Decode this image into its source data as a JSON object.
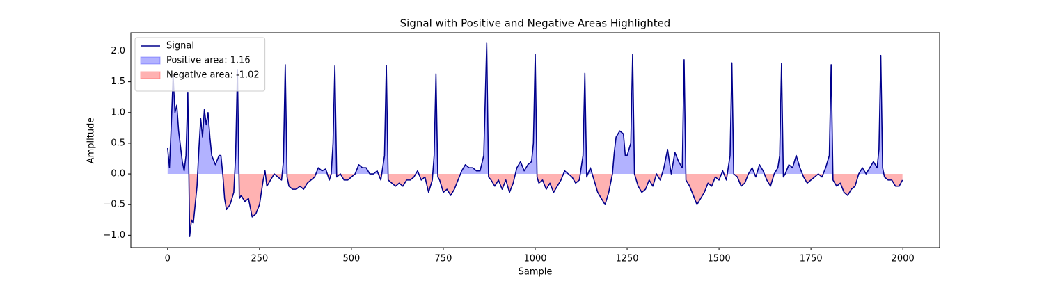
{
  "chart_data": {
    "type": "line",
    "title": "Signal with Positive and Negative Areas Highlighted",
    "xlabel": "Sample",
    "ylabel": "Amplitude",
    "xlim": [
      -100,
      2100
    ],
    "ylim": [
      -1.2,
      2.3
    ],
    "xticks": [
      0,
      250,
      500,
      750,
      1000,
      1250,
      1500,
      1750,
      2000
    ],
    "yticks": [
      {
        "value": -1.0,
        "label": "−1.0"
      },
      {
        "value": -0.5,
        "label": "−0.5"
      },
      {
        "value": 0,
        "label": "0.0"
      },
      {
        "value": 0.5,
        "label": "0.5"
      },
      {
        "value": 1.0,
        "label": "1.0"
      },
      {
        "value": 1.5,
        "label": "1.5"
      },
      {
        "value": 2.0,
        "label": "2.0"
      }
    ],
    "legend": "upper left",
    "x": [
      0,
      5,
      10,
      15,
      20,
      25,
      30,
      40,
      45,
      50,
      55,
      60,
      65,
      70,
      75,
      80,
      85,
      90,
      95,
      100,
      105,
      110,
      115,
      120,
      130,
      140,
      145,
      150,
      155,
      160,
      170,
      180,
      185,
      190,
      195,
      200,
      210,
      220,
      230,
      240,
      250,
      255,
      260,
      265,
      270,
      280,
      290,
      300,
      310,
      315,
      320,
      325,
      330,
      340,
      350,
      360,
      370,
      380,
      390,
      400,
      410,
      420,
      430,
      440,
      445,
      450,
      455,
      460,
      470,
      480,
      490,
      500,
      510,
      520,
      530,
      540,
      550,
      560,
      570,
      580,
      590,
      595,
      600,
      610,
      620,
      630,
      640,
      650,
      660,
      670,
      680,
      690,
      700,
      710,
      720,
      725,
      730,
      735,
      740,
      750,
      760,
      770,
      780,
      790,
      800,
      810,
      820,
      830,
      840,
      850,
      860,
      868,
      873,
      880,
      890,
      900,
      910,
      920,
      930,
      940,
      950,
      960,
      970,
      980,
      990,
      995,
      1000,
      1005,
      1010,
      1020,
      1030,
      1040,
      1050,
      1060,
      1070,
      1080,
      1090,
      1100,
      1110,
      1120,
      1130,
      1135,
      1140,
      1150,
      1160,
      1170,
      1180,
      1190,
      1200,
      1210,
      1215,
      1220,
      1230,
      1240,
      1245,
      1250,
      1260,
      1265,
      1270,
      1280,
      1290,
      1300,
      1310,
      1320,
      1330,
      1340,
      1350,
      1360,
      1370,
      1380,
      1390,
      1400,
      1405,
      1410,
      1420,
      1430,
      1440,
      1450,
      1460,
      1470,
      1480,
      1490,
      1500,
      1510,
      1520,
      1530,
      1535,
      1540,
      1550,
      1560,
      1570,
      1580,
      1590,
      1600,
      1610,
      1620,
      1630,
      1640,
      1650,
      1660,
      1665,
      1670,
      1675,
      1680,
      1690,
      1700,
      1710,
      1720,
      1730,
      1740,
      1750,
      1760,
      1770,
      1780,
      1790,
      1800,
      1805,
      1810,
      1820,
      1830,
      1840,
      1850,
      1860,
      1870,
      1880,
      1890,
      1900,
      1910,
      1920,
      1930,
      1935,
      1940,
      1945,
      1950,
      1960,
      1970,
      1980,
      1990,
      1999
    ],
    "series": [
      {
        "name": "Signal",
        "color": "#00008b",
        "values": [
          0.42,
          0.1,
          0.8,
          1.6,
          1.0,
          1.12,
          0.7,
          0.2,
          0.05,
          0.3,
          1.33,
          -1.02,
          -0.75,
          -0.8,
          -0.5,
          -0.2,
          0.4,
          0.9,
          0.6,
          1.05,
          0.8,
          1.0,
          0.6,
          0.3,
          0.15,
          0.3,
          0.3,
          0.0,
          -0.4,
          -0.58,
          -0.5,
          -0.3,
          0.3,
          1.7,
          -0.4,
          -0.35,
          -0.45,
          -0.4,
          -0.7,
          -0.65,
          -0.5,
          -0.3,
          -0.1,
          0.05,
          -0.2,
          -0.1,
          0.0,
          -0.05,
          -0.1,
          0.2,
          1.78,
          -0.05,
          -0.2,
          -0.25,
          -0.25,
          -0.2,
          -0.25,
          -0.15,
          -0.1,
          -0.05,
          0.1,
          0.05,
          0.08,
          -0.1,
          0.0,
          0.5,
          1.76,
          -0.05,
          0.0,
          -0.1,
          -0.1,
          -0.05,
          0.0,
          0.15,
          0.1,
          0.1,
          0.0,
          0.0,
          0.05,
          -0.1,
          0.3,
          1.77,
          -0.1,
          -0.15,
          -0.2,
          -0.15,
          -0.2,
          -0.1,
          -0.1,
          -0.05,
          0.05,
          -0.1,
          -0.05,
          -0.3,
          -0.1,
          0.3,
          1.63,
          -0.05,
          -0.1,
          -0.3,
          -0.25,
          -0.35,
          -0.25,
          -0.1,
          0.05,
          0.15,
          0.1,
          0.1,
          0.05,
          0.05,
          0.3,
          2.13,
          -0.05,
          -0.1,
          -0.2,
          -0.1,
          -0.25,
          -0.1,
          -0.3,
          -0.15,
          0.1,
          0.2,
          0.05,
          0.15,
          0.2,
          0.5,
          1.95,
          -0.05,
          -0.15,
          -0.1,
          -0.25,
          -0.15,
          -0.3,
          -0.2,
          -0.1,
          0.05,
          0.0,
          -0.05,
          -0.15,
          -0.1,
          0.3,
          1.64,
          -0.05,
          0.1,
          -0.1,
          -0.3,
          -0.4,
          -0.5,
          -0.3,
          0.0,
          0.35,
          0.6,
          0.7,
          0.65,
          0.3,
          0.3,
          0.5,
          1.95,
          0.0,
          -0.2,
          -0.3,
          -0.25,
          -0.1,
          -0.2,
          0.0,
          -0.1,
          0.1,
          0.4,
          0.0,
          0.35,
          0.2,
          0.1,
          1.86,
          -0.1,
          -0.2,
          -0.35,
          -0.5,
          -0.4,
          -0.3,
          -0.15,
          -0.2,
          -0.05,
          -0.1,
          0.05,
          -0.1,
          0.3,
          1.81,
          0.0,
          -0.05,
          -0.2,
          -0.15,
          0.0,
          0.1,
          -0.05,
          0.15,
          0.05,
          -0.1,
          -0.2,
          0.0,
          0.1,
          0.3,
          1.8,
          -0.05,
          0.0,
          0.15,
          0.1,
          0.3,
          0.1,
          -0.05,
          -0.15,
          -0.1,
          -0.05,
          0.0,
          -0.05,
          0.1,
          0.3,
          1.78,
          -0.1,
          -0.2,
          -0.15,
          -0.3,
          -0.35,
          -0.25,
          -0.2,
          0.0,
          0.1,
          0.0,
          0.1,
          0.2,
          0.1,
          0.4,
          1.93,
          0.1,
          -0.05,
          -0.1,
          -0.1,
          -0.2,
          -0.2,
          -0.1
        ]
      }
    ],
    "fills": [
      {
        "name": "Positive area: 1.16",
        "color": "#0000ff",
        "where": "above"
      },
      {
        "name": "Negative area: -1.02",
        "color": "#ff0000",
        "where": "below"
      }
    ]
  }
}
